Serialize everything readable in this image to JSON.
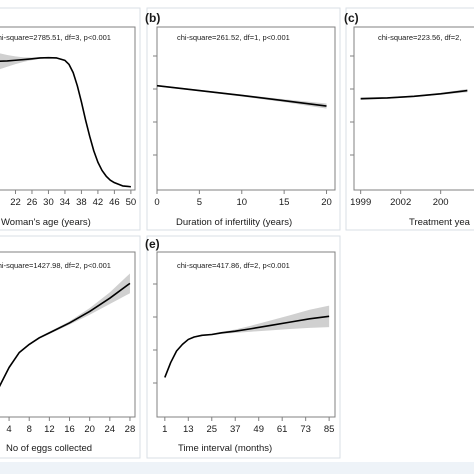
{
  "chart_data": [
    {
      "type": "line",
      "panel_label": "",
      "stat": "chi-square=2785.51, df=3, p<0.001",
      "xlabel": "Woman's age (years)",
      "x_ticks": [
        "22",
        "26",
        "30",
        "34",
        "38",
        "42",
        "46",
        "50"
      ],
      "xlim": [
        18,
        51
      ],
      "ylim": [
        0,
        1
      ],
      "x": [
        18,
        20,
        22,
        24,
        26,
        28,
        30,
        32,
        34,
        35,
        36,
        37,
        38,
        39,
        40,
        41,
        42,
        43,
        44,
        45,
        46,
        48,
        50
      ],
      "y": [
        0.79,
        0.792,
        0.796,
        0.8,
        0.805,
        0.81,
        0.812,
        0.81,
        0.795,
        0.77,
        0.72,
        0.64,
        0.54,
        0.43,
        0.33,
        0.24,
        0.17,
        0.12,
        0.085,
        0.06,
        0.045,
        0.025,
        0.02
      ],
      "band": [
        0.05,
        0.036,
        0.024,
        0.014,
        0.008,
        0.005,
        0.004,
        0.004,
        0.004,
        0.004,
        0.004,
        0.004,
        0.004,
        0.004,
        0.004,
        0.004,
        0.004,
        0.004,
        0.004,
        0.004,
        0.004,
        0.004,
        0.004
      ]
    },
    {
      "type": "line",
      "panel_label": "(b)",
      "stat": "chi-square=261.52, df=1, p<0.001",
      "xlabel": "Duration of infertility (years)",
      "x_ticks": [
        "0",
        "5",
        "10",
        "15",
        "20"
      ],
      "xlim": [
        0,
        21
      ],
      "ylim": [
        0,
        1
      ],
      "x": [
        0,
        5,
        10,
        15,
        20
      ],
      "y": [
        0.64,
        0.61,
        0.58,
        0.548,
        0.515
      ],
      "band": [
        0.005,
        0.005,
        0.006,
        0.009,
        0.016
      ]
    },
    {
      "type": "line",
      "panel_label": "(c)",
      "stat": "chi-square=223.56, df=2,",
      "xlabel": "Treatment yea",
      "x_ticks": [
        "1999",
        "2002",
        "200"
      ],
      "xlim": [
        1998.5,
        2007.8
      ],
      "ylim": [
        0,
        1
      ],
      "x": [
        1999,
        2001,
        2003,
        2005,
        2007
      ],
      "y": [
        0.56,
        0.565,
        0.575,
        0.59,
        0.61
      ],
      "band": [
        0.008,
        0.005,
        0.005,
        0.006,
        0.01
      ]
    },
    {
      "type": "line",
      "panel_label": "",
      "stat": "chi-square=1427.98, df=2, p<0.001",
      "xlabel": "No of eggs collected",
      "x_ticks": [
        "4",
        "8",
        "12",
        "16",
        "20",
        "24",
        "28"
      ],
      "xlim": [
        2,
        29
      ],
      "ylim": [
        0,
        1
      ],
      "x": [
        2,
        4,
        6,
        8,
        10,
        12,
        16,
        20,
        24,
        28
      ],
      "y": [
        0.18,
        0.3,
        0.39,
        0.44,
        0.48,
        0.51,
        0.57,
        0.64,
        0.72,
        0.81
      ],
      "band": [
        0.01,
        0.006,
        0.005,
        0.005,
        0.006,
        0.007,
        0.01,
        0.02,
        0.035,
        0.06
      ]
    },
    {
      "type": "line",
      "panel_label": "(e)",
      "stat": "chi-square=417.86, df=2, p<0.001",
      "xlabel": "Time interval (months)",
      "x_ticks": [
        "1",
        "13",
        "25",
        "37",
        "49",
        "61",
        "73",
        "85"
      ],
      "xlim": [
        -3,
        88
      ],
      "ylim": [
        0,
        1
      ],
      "x": [
        1,
        4,
        7,
        10,
        13,
        16,
        20,
        25,
        30,
        37,
        45,
        55,
        65,
        75,
        85
      ],
      "y": [
        0.24,
        0.33,
        0.4,
        0.44,
        0.47,
        0.485,
        0.495,
        0.5,
        0.51,
        0.52,
        0.535,
        0.555,
        0.575,
        0.595,
        0.61
      ],
      "band": [
        0.006,
        0.005,
        0.004,
        0.004,
        0.004,
        0.004,
        0.004,
        0.005,
        0.006,
        0.01,
        0.018,
        0.03,
        0.042,
        0.055,
        0.065
      ]
    }
  ]
}
